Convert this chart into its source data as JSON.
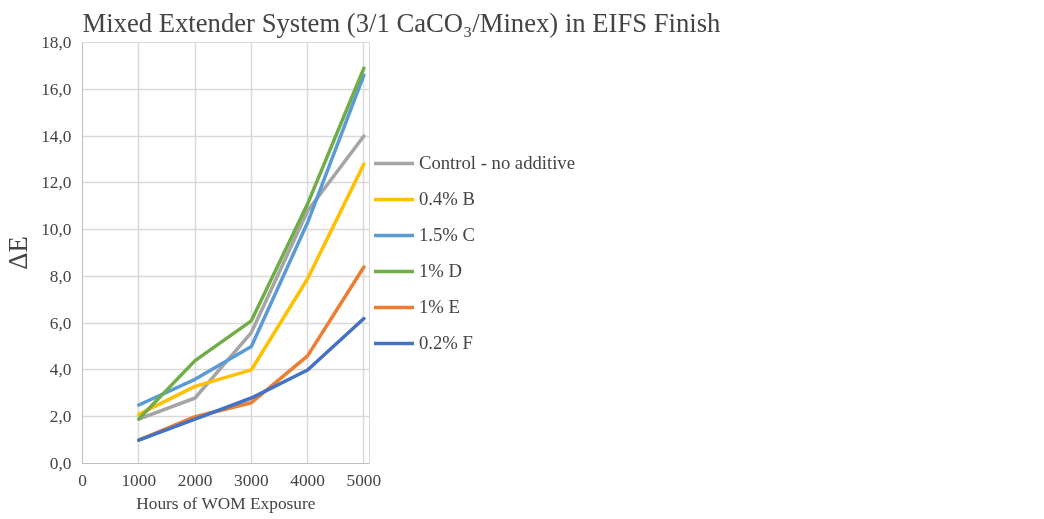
{
  "chart_data": {
    "type": "line",
    "title": "Mixed Extender System (3/1 CaCO₃/Minex) in EIFS Finish",
    "xlabel": "Hours of WOM Exposure",
    "ylabel": "ΔE",
    "x": [
      1000,
      2000,
      3000,
      4000,
      5000
    ],
    "series": [
      {
        "name": "Control - no additive",
        "color": "#a5a5a5",
        "values": [
          1.9,
          2.8,
          5.6,
          10.8,
          14.0
        ]
      },
      {
        "name": "0.4% B",
        "color": "#ffc000",
        "values": [
          2.1,
          3.3,
          4.0,
          7.9,
          12.8
        ]
      },
      {
        "name": "1.5% C",
        "color": "#5b9bd5",
        "values": [
          2.5,
          3.6,
          5.0,
          10.3,
          16.6
        ]
      },
      {
        "name": "1% D",
        "color": "#70ad47",
        "values": [
          1.9,
          4.4,
          6.1,
          11.1,
          16.9
        ]
      },
      {
        "name": "1% E",
        "color": "#ed7d31",
        "values": [
          1.0,
          2.0,
          2.6,
          4.6,
          8.4
        ]
      },
      {
        "name": "0.2% F",
        "color": "#4472c4",
        "values": [
          1.0,
          1.9,
          2.8,
          4.0,
          6.2
        ]
      }
    ],
    "xlim": [
      0,
      5100
    ],
    "ylim": [
      0,
      18
    ],
    "xticks": [
      0,
      1000,
      2000,
      3000,
      4000,
      5000
    ],
    "yticks": [
      {
        "value": 0,
        "label": "0,0"
      },
      {
        "value": 2,
        "label": "2,0"
      },
      {
        "value": 4,
        "label": "4,0"
      },
      {
        "value": 6,
        "label": "6,0"
      },
      {
        "value": 8,
        "label": "8,0"
      },
      {
        "value": 10,
        "label": "10,0"
      },
      {
        "value": 12,
        "label": "12,0"
      },
      {
        "value": 14,
        "label": "14,0"
      },
      {
        "value": 16,
        "label": "16,0"
      },
      {
        "value": 18,
        "label": "18,0"
      }
    ],
    "grid": true,
    "legend": "right",
    "marker": "none",
    "line_style": "solid"
  }
}
